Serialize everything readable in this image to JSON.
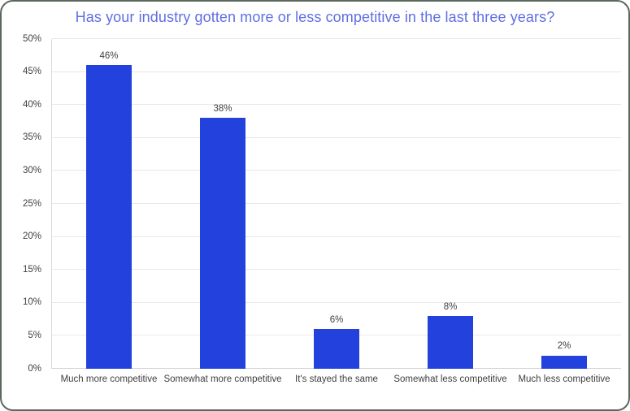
{
  "card": {
    "background": "#ffffff",
    "border_color": "#5b685e"
  },
  "chart_data": {
    "type": "bar",
    "title": "Has your industry gotten more or less competitive in the last three years?",
    "title_color": "#5f6fe3",
    "categories": [
      "Much more competitive",
      "Somewhat more competitive",
      "It's stayed the same",
      "Somewhat less competitive",
      "Much less competitive"
    ],
    "values": [
      46,
      38,
      6,
      8,
      2
    ],
    "data_labels": [
      "46%",
      "38%",
      "6%",
      "8%",
      "2%"
    ],
    "xlabel": "",
    "ylabel": "",
    "ylim": [
      0,
      50
    ],
    "ytick_step": 5,
    "ytick_labels": [
      "0%",
      "5%",
      "10%",
      "15%",
      "20%",
      "25%",
      "30%",
      "35%",
      "40%",
      "45%",
      "50%"
    ],
    "grid": true,
    "legend": "none",
    "bar_color": "#2341dc",
    "axis_text_color": "#3f3f3f",
    "gridline_color": "#e8e8e8",
    "baseline_color": "#d2d2d2",
    "axis_line_color": "#d9d9d9"
  }
}
